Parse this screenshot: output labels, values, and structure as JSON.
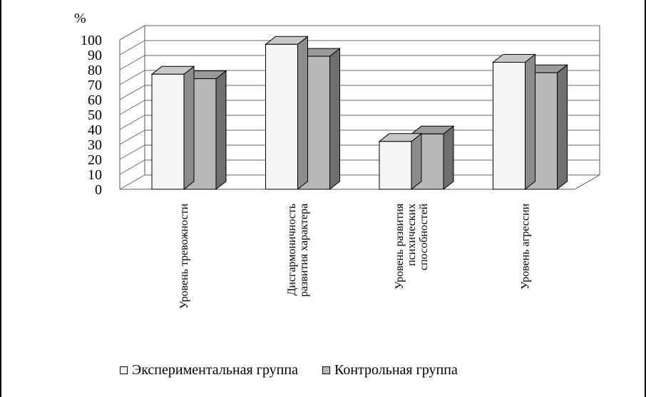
{
  "chart_data": {
    "type": "bar",
    "unit_label": "%",
    "categories": [
      "Уровень тревожности",
      "Дисгармоничность развития характера",
      "Уровень развития психических способностей",
      "Уровень агрессии"
    ],
    "category_lines": [
      [
        "Уровень тревожности"
      ],
      [
        "Дисгармоничность",
        "развития характера"
      ],
      [
        "Уровень развития",
        "психических",
        "способностей"
      ],
      [
        "Уровень агрессии"
      ]
    ],
    "series": [
      {
        "name": "Экспериментальная группа",
        "color": "#f4f4f4",
        "top_color": "#c8c8c8",
        "side_color": "#8c8c8c",
        "values": [
          77,
          97,
          32,
          85
        ]
      },
      {
        "name": "Контрольная группа",
        "color": "#b8b8b8",
        "top_color": "#9a9a9a",
        "side_color": "#6e6e6e",
        "values": [
          74,
          89,
          37,
          78
        ]
      }
    ],
    "ylim": [
      0,
      100
    ],
    "yticks": [
      "0",
      "10",
      "20",
      "30",
      "40",
      "50",
      "60",
      "70",
      "80",
      "90",
      "100"
    ],
    "grid": true,
    "legend_position": "bottom"
  }
}
